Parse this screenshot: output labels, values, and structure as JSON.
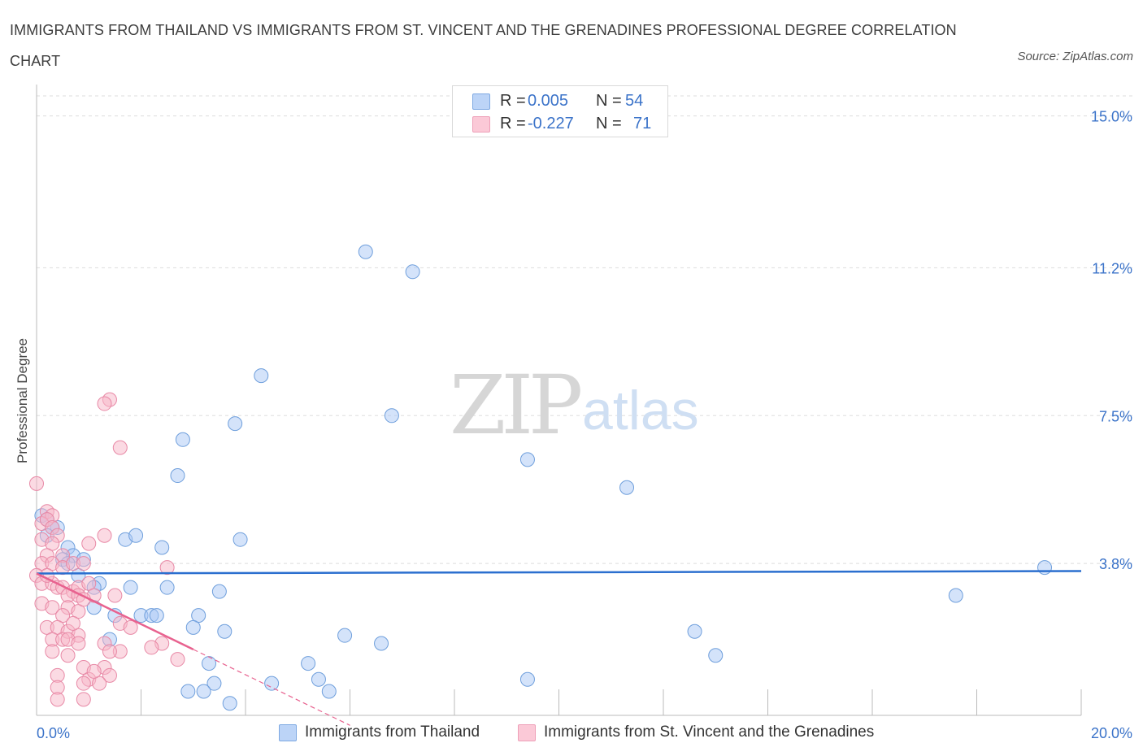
{
  "title": "IMMIGRANTS FROM THAILAND VS IMMIGRANTS FROM ST. VINCENT AND THE GRENADINES PROFESSIONAL DEGREE CORRELATION CHART",
  "source": "Source: ZipAtlas.com",
  "watermark": {
    "zip": "ZIP",
    "atlas": "atlas"
  },
  "legend_stats": [
    {
      "r_label": "R =",
      "r_value": "0.005",
      "n_label": "N =",
      "n_value": "54",
      "color": "#a9c8f5"
    },
    {
      "r_label": "R =",
      "r_value": "-0.227",
      "n_label": "N =",
      "n_value": "71",
      "color": "#f7b6c8"
    }
  ],
  "colors": {
    "blue_fill": "#a9c8f5",
    "blue_stroke": "#6f9fdc",
    "blue_line": "#2b6fcf",
    "pink_fill": "#f7b6c8",
    "pink_stroke": "#e889a6",
    "pink_line": "#e8628f",
    "tick_label": "#3b73c9",
    "grid": "#dddddd"
  },
  "chart_data": {
    "type": "scatter",
    "title": "IMMIGRANTS FROM THAILAND VS IMMIGRANTS FROM ST. VINCENT AND THE GRENADINES PROFESSIONAL DEGREE CORRELATION CHART",
    "xlabel": "",
    "ylabel": "Professional Degree",
    "xlim": [
      0,
      20
    ],
    "ylim": [
      0,
      15.5
    ],
    "x_tick_labels": [
      "0.0%",
      "20.0%"
    ],
    "y_ticks": [
      {
        "value": 3.8,
        "label": "3.8%"
      },
      {
        "value": 7.5,
        "label": "7.5%"
      },
      {
        "value": 11.2,
        "label": "11.2%"
      },
      {
        "value": 15.0,
        "label": "15.0%"
      }
    ],
    "grid": true,
    "legend_position": "bottom",
    "series": [
      {
        "name": "Immigrants from Thailand",
        "color": "#a9c8f5",
        "trend": {
          "x0": 0.0,
          "y0": 3.55,
          "x1": 20.0,
          "y1": 3.61,
          "dashed_to": null
        },
        "points": [
          [
            6.3,
            11.6
          ],
          [
            7.2,
            11.1
          ],
          [
            4.3,
            8.5
          ],
          [
            3.8,
            7.3
          ],
          [
            6.8,
            7.5
          ],
          [
            2.8,
            6.9
          ],
          [
            9.4,
            6.4
          ],
          [
            2.7,
            6.0
          ],
          [
            11.3,
            5.7
          ],
          [
            19.3,
            3.7
          ],
          [
            17.6,
            3.0
          ],
          [
            0.1,
            5.0
          ],
          [
            0.2,
            4.9
          ],
          [
            0.4,
            4.7
          ],
          [
            0.3,
            4.7
          ],
          [
            0.2,
            4.5
          ],
          [
            1.7,
            4.4
          ],
          [
            1.9,
            4.5
          ],
          [
            3.9,
            4.4
          ],
          [
            0.6,
            4.2
          ],
          [
            2.4,
            4.2
          ],
          [
            0.7,
            4.0
          ],
          [
            0.5,
            3.9
          ],
          [
            0.9,
            3.9
          ],
          [
            0.6,
            3.8
          ],
          [
            0.8,
            3.5
          ],
          [
            1.2,
            3.3
          ],
          [
            1.1,
            3.2
          ],
          [
            1.8,
            3.2
          ],
          [
            2.5,
            3.2
          ],
          [
            3.5,
            3.1
          ],
          [
            1.1,
            2.7
          ],
          [
            2.0,
            2.5
          ],
          [
            2.2,
            2.5
          ],
          [
            2.3,
            2.5
          ],
          [
            1.5,
            2.5
          ],
          [
            3.1,
            2.5
          ],
          [
            3.0,
            2.2
          ],
          [
            3.6,
            2.1
          ],
          [
            5.9,
            2.0
          ],
          [
            1.4,
            1.9
          ],
          [
            6.6,
            1.8
          ],
          [
            12.6,
            2.1
          ],
          [
            13.0,
            1.5
          ],
          [
            3.3,
            1.3
          ],
          [
            5.2,
            1.3
          ],
          [
            3.4,
            0.8
          ],
          [
            4.5,
            0.8
          ],
          [
            5.4,
            0.9
          ],
          [
            5.6,
            0.6
          ],
          [
            9.4,
            0.9
          ],
          [
            2.9,
            0.6
          ],
          [
            3.2,
            0.6
          ],
          [
            3.7,
            0.3
          ]
        ]
      },
      {
        "name": "Immigrants from St. Vincent and the Grenadines",
        "color": "#f7b6c8",
        "trend": {
          "x0": 0.0,
          "y0": 3.55,
          "x1": 3.0,
          "y1": 1.65,
          "dashed_to": {
            "x": 6.0,
            "y": -0.25
          }
        },
        "points": [
          [
            0.0,
            5.8
          ],
          [
            0.2,
            5.1
          ],
          [
            0.3,
            5.0
          ],
          [
            0.1,
            4.8
          ],
          [
            0.2,
            4.9
          ],
          [
            0.3,
            4.7
          ],
          [
            0.4,
            4.5
          ],
          [
            0.1,
            4.4
          ],
          [
            0.3,
            4.3
          ],
          [
            0.2,
            4.0
          ],
          [
            0.5,
            4.0
          ],
          [
            0.1,
            3.8
          ],
          [
            0.3,
            3.8
          ],
          [
            0.5,
            3.7
          ],
          [
            0.7,
            3.8
          ],
          [
            0.9,
            3.8
          ],
          [
            1.0,
            4.3
          ],
          [
            1.3,
            4.5
          ],
          [
            0.0,
            3.5
          ],
          [
            0.1,
            3.3
          ],
          [
            0.3,
            3.3
          ],
          [
            0.4,
            3.2
          ],
          [
            0.5,
            3.2
          ],
          [
            0.7,
            3.1
          ],
          [
            0.8,
            3.2
          ],
          [
            1.0,
            3.3
          ],
          [
            1.1,
            3.0
          ],
          [
            0.6,
            3.0
          ],
          [
            0.8,
            3.0
          ],
          [
            0.1,
            2.8
          ],
          [
            0.3,
            2.7
          ],
          [
            0.6,
            2.7
          ],
          [
            0.8,
            2.6
          ],
          [
            0.5,
            2.5
          ],
          [
            0.2,
            2.2
          ],
          [
            0.4,
            2.2
          ],
          [
            0.6,
            2.1
          ],
          [
            0.8,
            2.0
          ],
          [
            0.3,
            1.9
          ],
          [
            0.5,
            1.9
          ],
          [
            0.6,
            1.9
          ],
          [
            0.8,
            1.8
          ],
          [
            1.3,
            1.8
          ],
          [
            1.6,
            1.6
          ],
          [
            0.3,
            1.6
          ],
          [
            1.4,
            1.6
          ],
          [
            1.6,
            2.3
          ],
          [
            1.8,
            2.2
          ],
          [
            2.5,
            3.7
          ],
          [
            2.4,
            1.8
          ],
          [
            1.5,
            3.0
          ],
          [
            2.7,
            1.4
          ],
          [
            1.4,
            7.9
          ],
          [
            1.3,
            7.8
          ],
          [
            1.6,
            6.7
          ],
          [
            0.9,
            1.2
          ],
          [
            1.3,
            1.2
          ],
          [
            0.4,
            1.0
          ],
          [
            1.4,
            1.0
          ],
          [
            1.0,
            0.9
          ],
          [
            1.2,
            0.8
          ],
          [
            0.4,
            0.7
          ],
          [
            0.4,
            0.4
          ],
          [
            0.9,
            0.4
          ],
          [
            0.6,
            1.5
          ],
          [
            0.9,
            0.8
          ],
          [
            1.1,
            1.1
          ],
          [
            0.7,
            2.3
          ],
          [
            2.2,
            1.7
          ],
          [
            0.2,
            3.5
          ],
          [
            0.9,
            2.9
          ]
        ]
      }
    ]
  }
}
